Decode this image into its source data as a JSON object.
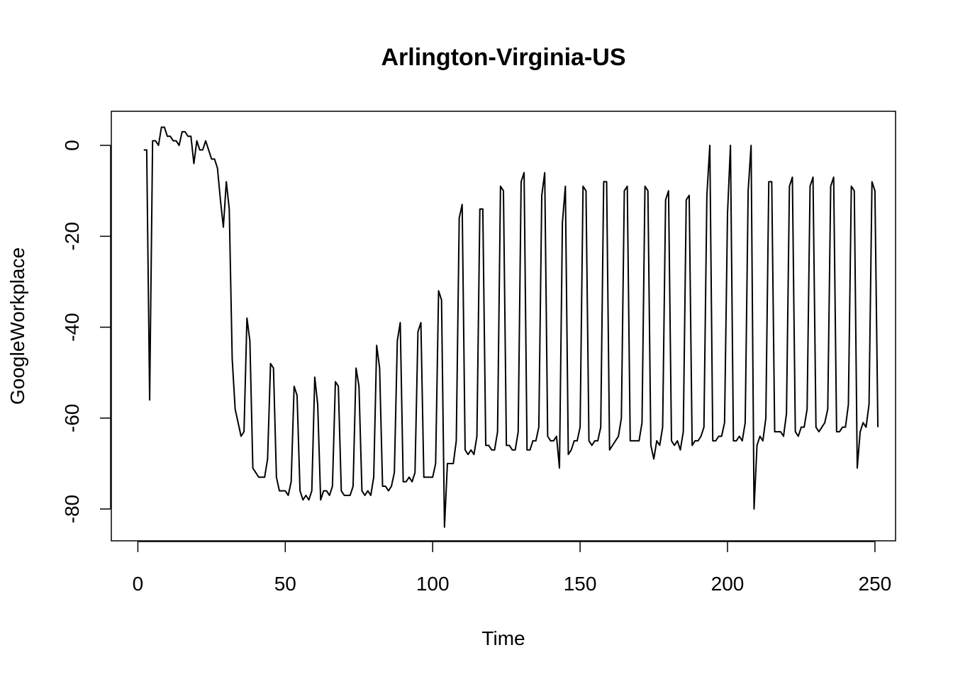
{
  "chart_data": {
    "type": "line",
    "title": "Arlington-Virginia-US",
    "xlabel": "Time",
    "ylabel": "GoogleWorkplace",
    "xlim": [
      -9,
      257
    ],
    "ylim": [
      -87,
      7.5
    ],
    "x_ticks": [
      0,
      50,
      100,
      150,
      200,
      250
    ],
    "y_ticks": [
      0,
      -20,
      -40,
      -60,
      -80
    ],
    "grid": false,
    "legend": "none",
    "line_color": "#000000",
    "series": [
      {
        "x_start": 2,
        "values": [
          -1,
          -1,
          -56,
          1,
          1,
          0,
          4,
          4,
          2,
          2,
          1,
          1,
          0,
          3,
          3,
          2,
          2,
          -4,
          1,
          -1,
          -1,
          1,
          -1,
          -3,
          -3,
          -5,
          -12,
          -18,
          -8,
          -14,
          -47,
          -58,
          -61,
          -64,
          -63,
          -38,
          -43,
          -71,
          -72,
          -73,
          -73,
          -73,
          -69,
          -48,
          -49,
          -73,
          -76,
          -76,
          -76,
          -77,
          -74,
          -53,
          -55,
          -76,
          -78,
          -77,
          -78,
          -76,
          -51,
          -57,
          -78,
          -76,
          -76,
          -77,
          -75,
          -52,
          -53,
          -76,
          -77,
          -77,
          -77,
          -75,
          -49,
          -53,
          -76,
          -77,
          -76,
          -77,
          -73,
          -44,
          -49,
          -75,
          -75,
          -76,
          -75,
          -72,
          -43,
          -39,
          -74,
          -74,
          -73,
          -74,
          -72,
          -41,
          -39,
          -73,
          -73,
          -73,
          -73,
          -70,
          -32,
          -34,
          -84,
          -70,
          -70,
          -70,
          -65,
          -16,
          -13,
          -67,
          -68,
          -67,
          -68,
          -64,
          -14,
          -14,
          -66,
          -66,
          -67,
          -67,
          -63,
          -9,
          -10,
          -66,
          -66,
          -67,
          -67,
          -63,
          -8,
          -6,
          -67,
          -67,
          -65,
          -65,
          -62,
          -11,
          -6,
          -64,
          -65,
          -65,
          -64,
          -71,
          -17,
          -9,
          -68,
          -67,
          -65,
          -65,
          -62,
          -9,
          -10,
          -65,
          -66,
          -65,
          -65,
          -62,
          -8,
          -8,
          -67,
          -66,
          -65,
          -64,
          -60,
          -10,
          -9,
          -65,
          -65,
          -65,
          -65,
          -61,
          -9,
          -10,
          -66,
          -69,
          -65,
          -66,
          -62,
          -12,
          -10,
          -65,
          -66,
          -65,
          -67,
          -63,
          -12,
          -11,
          -66,
          -65,
          -65,
          -64,
          -62,
          -11,
          0,
          -65,
          -65,
          -64,
          -64,
          -61,
          -15,
          0,
          -65,
          -65,
          -64,
          -65,
          -61,
          -10,
          0,
          -80,
          -66,
          -64,
          -65,
          -60,
          -8,
          -8,
          -63,
          -63,
          -63,
          -64,
          -59,
          -9,
          -7,
          -63,
          -64,
          -62,
          -62,
          -58,
          -9,
          -7,
          -62,
          -63,
          -62,
          -61,
          -58,
          -9,
          -7,
          -63,
          -63,
          -62,
          -62,
          -57,
          -9,
          -10,
          -71,
          -63,
          -61,
          -62,
          -57,
          -8,
          -10,
          -62
        ]
      }
    ]
  }
}
